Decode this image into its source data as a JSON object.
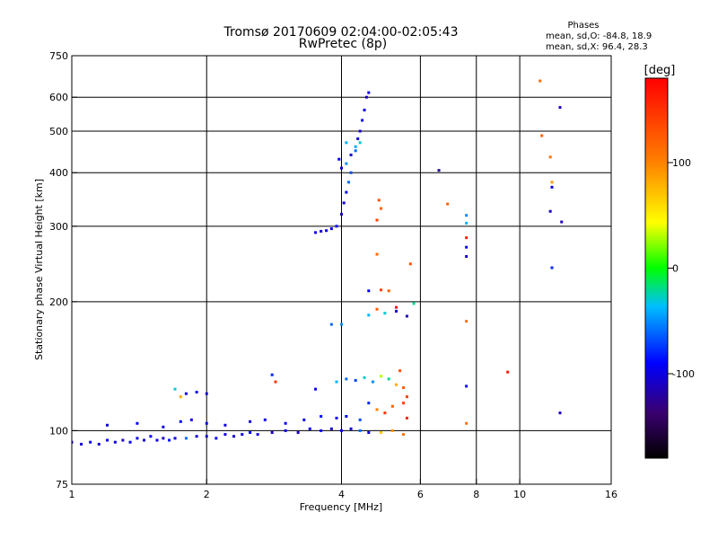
{
  "chart_data": {
    "type": "scatter",
    "title": "Tromsø 20170609 02:04:00-02:05:43",
    "subtitle": "RwPretec (8p)",
    "xlabel": "Frequency [MHz]",
    "ylabel": "Stationary phase Virtual Height [km]",
    "x_scale": "log",
    "y_scale": "log",
    "xlim": [
      1,
      16
    ],
    "ylim": [
      75,
      750
    ],
    "x_ticks": [
      "1",
      "2",
      "4",
      "6",
      "8",
      "10",
      "16"
    ],
    "x_tick_values": [
      1,
      2,
      4,
      6,
      8,
      10,
      16
    ],
    "y_ticks": [
      "75",
      "100",
      "200",
      "300",
      "400",
      "500",
      "600",
      "750"
    ],
    "y_tick_values": [
      75,
      100,
      200,
      300,
      400,
      500,
      600,
      750
    ],
    "grid": true,
    "stats": {
      "heading": "Phases",
      "line_o": "mean, sd,O: -84.8, 18.9",
      "line_x": "mean, sd,X:  96.4, 28.3"
    },
    "colorbar": {
      "label": "[deg]",
      "ticks": [
        "100",
        "0",
        "-100"
      ],
      "tick_values": [
        100,
        0,
        -100
      ],
      "range": [
        -180,
        180
      ]
    },
    "series": [
      {
        "values": [
          [
            1.0,
            94,
            -100
          ],
          [
            1.05,
            93,
            -105
          ],
          [
            1.1,
            94,
            -98
          ],
          [
            1.15,
            93,
            -102
          ],
          [
            1.2,
            95,
            -95
          ],
          [
            1.25,
            94,
            -100
          ],
          [
            1.3,
            95,
            -110
          ],
          [
            1.35,
            94,
            -95
          ],
          [
            1.4,
            96,
            -100
          ],
          [
            1.45,
            95,
            -105
          ],
          [
            1.5,
            97,
            -90
          ],
          [
            1.55,
            95,
            -100
          ],
          [
            1.6,
            96,
            -110
          ],
          [
            1.65,
            95,
            -85
          ],
          [
            1.7,
            96,
            -100
          ],
          [
            1.8,
            96,
            -60
          ],
          [
            1.9,
            97,
            -100
          ],
          [
            2.0,
            97,
            -105
          ],
          [
            2.1,
            96,
            -95
          ],
          [
            2.2,
            98,
            -100
          ],
          [
            2.3,
            97,
            -110
          ],
          [
            2.4,
            98,
            -100
          ],
          [
            2.5,
            99,
            -90
          ],
          [
            2.6,
            98,
            -100
          ],
          [
            2.8,
            99,
            -105
          ],
          [
            3.0,
            100,
            -100
          ],
          [
            3.2,
            99,
            -110
          ],
          [
            3.4,
            101,
            -95
          ],
          [
            3.6,
            100,
            -100
          ],
          [
            3.8,
            101,
            -105
          ],
          [
            4.0,
            100,
            -100
          ],
          [
            4.2,
            101,
            -95
          ],
          [
            4.4,
            100,
            -60
          ],
          [
            4.6,
            99,
            -100
          ],
          [
            1.2,
            103,
            -100
          ],
          [
            1.4,
            104,
            -95
          ],
          [
            1.6,
            102,
            -100
          ],
          [
            1.75,
            105,
            -90
          ],
          [
            1.85,
            106,
            -100
          ],
          [
            2.0,
            104,
            -95
          ],
          [
            2.2,
            103,
            -100
          ],
          [
            2.5,
            105,
            -105
          ],
          [
            2.7,
            106,
            -100
          ],
          [
            3.0,
            104,
            -95
          ],
          [
            3.3,
            106,
            -100
          ],
          [
            3.6,
            108,
            -85
          ],
          [
            3.9,
            107,
            -100
          ],
          [
            4.1,
            108,
            -95
          ],
          [
            4.4,
            106,
            -70
          ],
          [
            1.7,
            125,
            -30
          ],
          [
            1.8,
            122,
            -100
          ],
          [
            1.9,
            123,
            -95
          ],
          [
            2.0,
            122,
            -100
          ],
          [
            1.75,
            120,
            80
          ],
          [
            2.8,
            135,
            -80
          ],
          [
            2.85,
            130,
            150
          ],
          [
            3.5,
            125,
            -100
          ],
          [
            3.9,
            130,
            -40
          ],
          [
            4.1,
            132,
            -60
          ],
          [
            4.3,
            131,
            -70
          ],
          [
            4.5,
            133,
            -30
          ],
          [
            4.7,
            130,
            -50
          ],
          [
            4.9,
            134,
            30
          ],
          [
            5.1,
            132,
            -20
          ],
          [
            5.3,
            128,
            80
          ],
          [
            5.5,
            126,
            120
          ],
          [
            5.4,
            138,
            130
          ],
          [
            4.6,
            116,
            -80
          ],
          [
            4.8,
            112,
            100
          ],
          [
            5.0,
            110,
            150
          ],
          [
            5.2,
            114,
            120
          ],
          [
            5.5,
            116,
            140
          ],
          [
            5.6,
            120,
            140
          ],
          [
            5.6,
            107,
            160
          ],
          [
            5.2,
            100,
            90
          ],
          [
            4.9,
            99,
            70
          ],
          [
            5.5,
            98,
            110
          ],
          [
            3.8,
            177,
            -60
          ],
          [
            4.0,
            177,
            -50
          ],
          [
            4.6,
            186,
            -40
          ],
          [
            4.8,
            192,
            120
          ],
          [
            5.0,
            188,
            -30
          ],
          [
            5.3,
            190,
            -100
          ],
          [
            5.6,
            185,
            -110
          ],
          [
            5.3,
            194,
            170
          ],
          [
            5.8,
            198,
            -20
          ],
          [
            4.6,
            212,
            -90
          ],
          [
            4.9,
            213,
            140
          ],
          [
            5.1,
            212,
            120
          ],
          [
            5.7,
            245,
            130
          ],
          [
            4.8,
            258,
            115
          ],
          [
            3.5,
            290,
            -100
          ],
          [
            3.6,
            292,
            -105
          ],
          [
            3.7,
            293,
            -100
          ],
          [
            3.8,
            296,
            -95
          ],
          [
            3.9,
            300,
            -100
          ],
          [
            4.0,
            320,
            -110
          ],
          [
            4.05,
            340,
            -100
          ],
          [
            4.1,
            360,
            -95
          ],
          [
            4.15,
            380,
            -60
          ],
          [
            4.0,
            410,
            -100
          ],
          [
            4.1,
            420,
            -50
          ],
          [
            4.2,
            440,
            -100
          ],
          [
            4.3,
            460,
            -40
          ],
          [
            4.35,
            480,
            -100
          ],
          [
            4.4,
            500,
            -105
          ],
          [
            4.45,
            530,
            -100
          ],
          [
            4.5,
            560,
            -95
          ],
          [
            4.55,
            600,
            -110
          ],
          [
            4.6,
            615,
            -100
          ],
          [
            4.3,
            450,
            -60
          ],
          [
            4.4,
            470,
            -30
          ],
          [
            4.2,
            400,
            -70
          ],
          [
            4.1,
            470,
            -40
          ],
          [
            3.95,
            430,
            -90
          ],
          [
            4.9,
            330,
            120
          ],
          [
            4.85,
            345,
            130
          ],
          [
            4.8,
            310,
            140
          ],
          [
            6.6,
            405,
            -120
          ],
          [
            6.9,
            338,
            120
          ],
          [
            7.6,
            318,
            -50
          ],
          [
            7.6,
            305,
            -40
          ],
          [
            7.6,
            282,
            160
          ],
          [
            7.6,
            268,
            -100
          ],
          [
            7.6,
            255,
            -110
          ],
          [
            7.6,
            180,
            110
          ],
          [
            7.6,
            127,
            -100
          ],
          [
            7.6,
            104,
            110
          ],
          [
            9.4,
            137,
            165
          ],
          [
            11.1,
            655,
            115
          ],
          [
            11.2,
            488,
            120
          ],
          [
            11.7,
            435,
            110
          ],
          [
            11.8,
            380,
            90
          ],
          [
            11.8,
            370,
            -100
          ],
          [
            11.7,
            325,
            -110
          ],
          [
            11.8,
            240,
            -80
          ],
          [
            12.3,
            568,
            -110
          ],
          [
            12.4,
            307,
            -110
          ],
          [
            12.3,
            110,
            -110
          ]
        ]
      }
    ]
  }
}
